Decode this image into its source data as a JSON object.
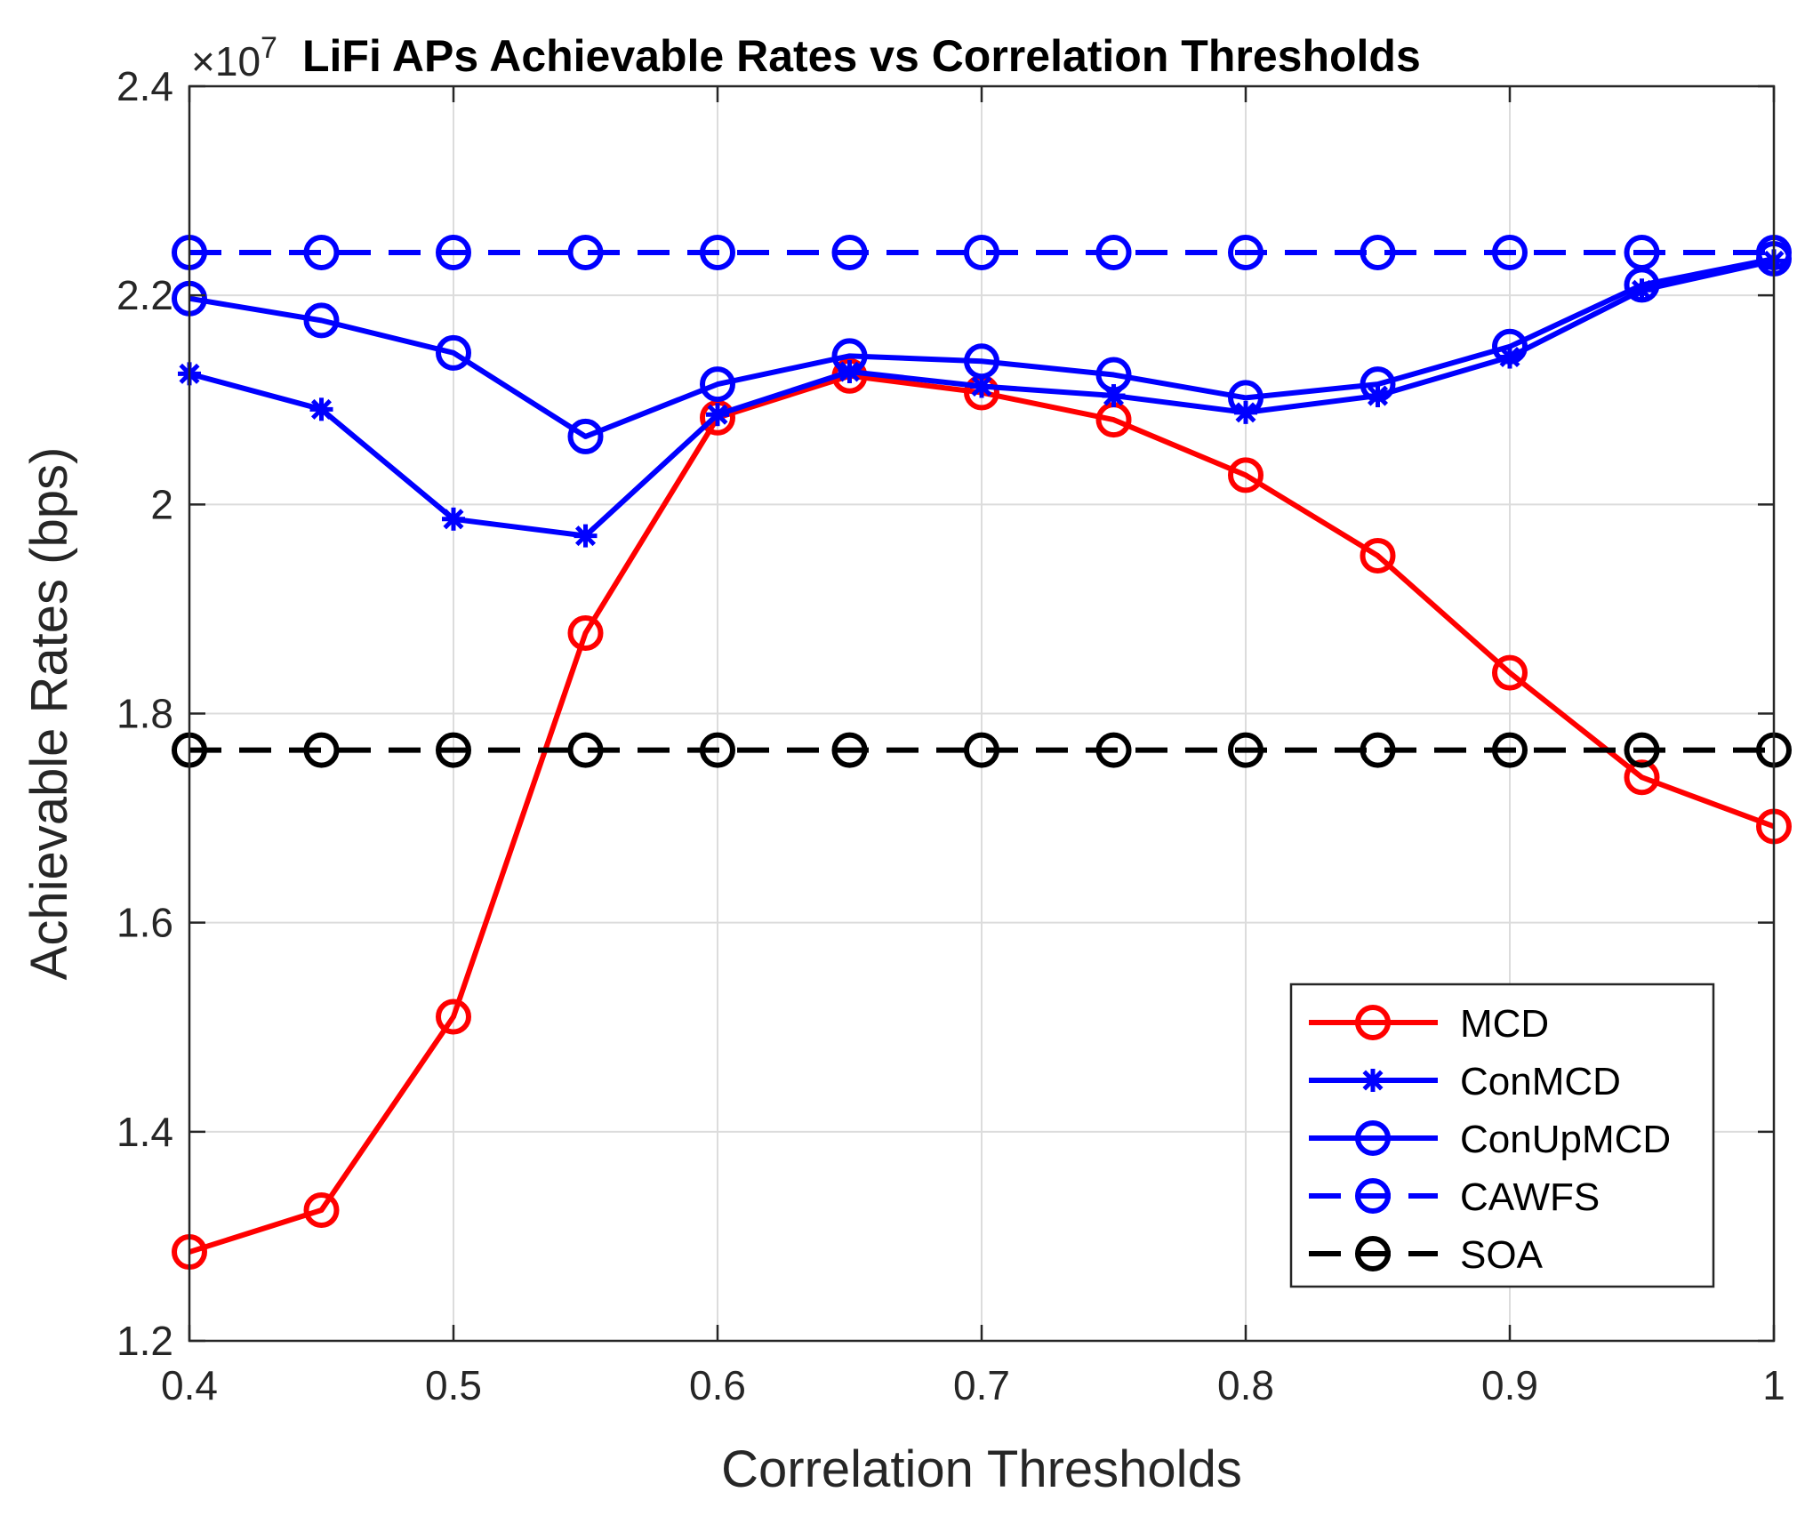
{
  "chart_data": {
    "type": "line",
    "title": "LiFi APs Achievable Rates vs Correlation Thresholds",
    "xlabel": "Correlation Thresholds",
    "ylabel": "Achievable Rates (bps)",
    "y_exponent_base": "×10",
    "y_exponent_power": "7",
    "xlim": [
      0.4,
      1.0
    ],
    "ylim": [
      1.2,
      2.4
    ],
    "x_ticks": [
      0.4,
      0.5,
      0.6,
      0.7,
      0.8,
      0.9,
      1.0
    ],
    "x_tick_labels": [
      "0.4",
      "0.5",
      "0.6",
      "0.7",
      "0.8",
      "0.9",
      "1"
    ],
    "y_ticks": [
      1.2,
      1.4,
      1.6,
      1.8,
      2.0,
      2.2,
      2.4
    ],
    "y_tick_labels": [
      "1.2",
      "1.4",
      "1.6",
      "1.8",
      "2",
      "2.2",
      "2.4"
    ],
    "grid": true,
    "legend_position": "bottom-right",
    "x": [
      0.4,
      0.45,
      0.5,
      0.55,
      0.6,
      0.65,
      0.7,
      0.75,
      0.8,
      0.85,
      0.9,
      0.95,
      1.0
    ],
    "series": [
      {
        "name": "MCD",
        "color": "#ff0000",
        "line_style": "solid",
        "marker": "circle",
        "values": [
          1.285,
          1.325,
          1.51,
          1.877,
          2.083,
          2.123,
          2.107,
          2.081,
          2.028,
          1.951,
          1.839,
          1.739,
          1.692
        ]
      },
      {
        "name": "ConMCD",
        "color": "#0000ff",
        "line_style": "solid",
        "marker": "star",
        "values": [
          2.125,
          2.091,
          1.986,
          1.97,
          2.086,
          2.127,
          2.113,
          2.104,
          2.088,
          2.104,
          2.141,
          2.205,
          2.233
        ]
      },
      {
        "name": "ConUpMCD",
        "color": "#0000ff",
        "line_style": "solid",
        "marker": "circle",
        "values": [
          2.197,
          2.176,
          2.145,
          2.065,
          2.115,
          2.142,
          2.137,
          2.124,
          2.102,
          2.115,
          2.151,
          2.21,
          2.235
        ]
      },
      {
        "name": "CAWFS",
        "color": "#0000ff",
        "line_style": "dashed",
        "marker": "circle",
        "values": [
          2.241,
          2.241,
          2.241,
          2.241,
          2.241,
          2.241,
          2.241,
          2.241,
          2.241,
          2.241,
          2.241,
          2.241,
          2.241
        ]
      },
      {
        "name": "SOA",
        "color": "#000000",
        "line_style": "dashed",
        "marker": "circle",
        "values": [
          1.765,
          1.765,
          1.765,
          1.765,
          1.765,
          1.765,
          1.765,
          1.765,
          1.765,
          1.765,
          1.765,
          1.765,
          1.765
        ]
      }
    ]
  }
}
